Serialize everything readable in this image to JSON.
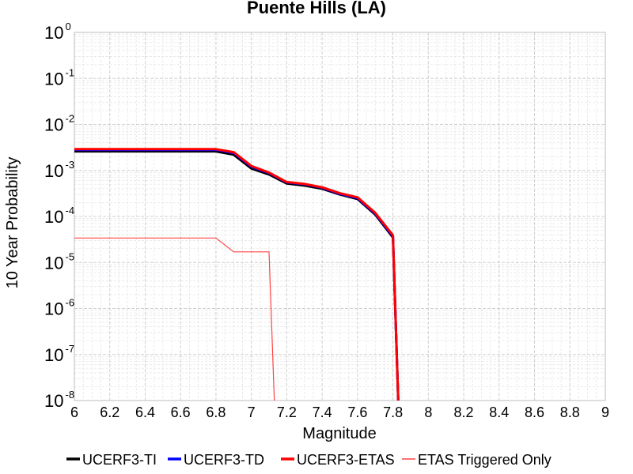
{
  "chart_data": {
    "type": "line",
    "title": "Puente Hills (LA)",
    "xlabel": "Magnitude",
    "ylabel": "10 Year Probability",
    "xlim": [
      6,
      9
    ],
    "ylim": [
      1e-08,
      1
    ],
    "yscale": "log",
    "grid": true,
    "legend_position": "bottom",
    "x_ticks": [
      "6",
      "6.2",
      "6.4",
      "6.6",
      "6.8",
      "7",
      "7.2",
      "7.4",
      "7.6",
      "7.8",
      "8",
      "8.2",
      "8.4",
      "8.6",
      "8.8",
      "9"
    ],
    "y_ticks": [
      {
        "base": "10",
        "exp": "0",
        "value": 1
      },
      {
        "base": "10",
        "exp": "-1",
        "value": 0.1
      },
      {
        "base": "10",
        "exp": "-2",
        "value": 0.01
      },
      {
        "base": "10",
        "exp": "-3",
        "value": 0.001
      },
      {
        "base": "10",
        "exp": "-4",
        "value": 0.0001
      },
      {
        "base": "10",
        "exp": "-5",
        "value": 1e-05
      },
      {
        "base": "10",
        "exp": "-6",
        "value": 1e-06
      },
      {
        "base": "10",
        "exp": "-7",
        "value": 1e-07
      },
      {
        "base": "10",
        "exp": "-8",
        "value": 1e-08
      }
    ],
    "series": [
      {
        "name": "UCERF3-TI",
        "color": "#000000",
        "width": 3,
        "x": [
          6.0,
          6.8,
          6.9,
          7.0,
          7.1,
          7.2,
          7.3,
          7.4,
          7.5,
          7.6,
          7.7,
          7.8,
          7.83
        ],
        "y": [
          0.0026,
          0.0026,
          0.0022,
          0.0011,
          0.00082,
          0.00052,
          0.00047,
          0.0004,
          0.0003,
          0.00024,
          0.00011,
          3.5e-05,
          1e-08
        ]
      },
      {
        "name": "UCERF3-TD",
        "color": "#0000ff",
        "width": 3,
        "x": [
          6.0,
          6.8,
          6.9,
          7.0,
          7.1,
          7.2,
          7.3,
          7.4,
          7.5,
          7.6,
          7.7,
          7.8,
          7.83
        ],
        "y": [
          0.0028,
          0.0028,
          0.0024,
          0.0012,
          0.00088,
          0.00055,
          0.0005,
          0.00042,
          0.00031,
          0.00025,
          0.000115,
          3.7e-05,
          1e-08
        ]
      },
      {
        "name": "UCERF3-ETAS",
        "color": "#ff0000",
        "width": 3,
        "x": [
          6.0,
          6.8,
          6.9,
          7.0,
          7.1,
          7.2,
          7.3,
          7.4,
          7.5,
          7.6,
          7.7,
          7.8,
          7.83
        ],
        "y": [
          0.0029,
          0.0029,
          0.0025,
          0.00125,
          0.0009,
          0.00056,
          0.00051,
          0.00043,
          0.00032,
          0.00026,
          0.00012,
          3.9e-05,
          1e-08
        ]
      },
      {
        "name": "ETAS Triggered Only",
        "color": "#ff4444",
        "width": 1.2,
        "x": [
          6.0,
          6.8,
          6.9,
          7.1,
          7.13
        ],
        "y": [
          3.4e-05,
          3.4e-05,
          1.7e-05,
          1.7e-05,
          1e-08
        ]
      }
    ]
  }
}
